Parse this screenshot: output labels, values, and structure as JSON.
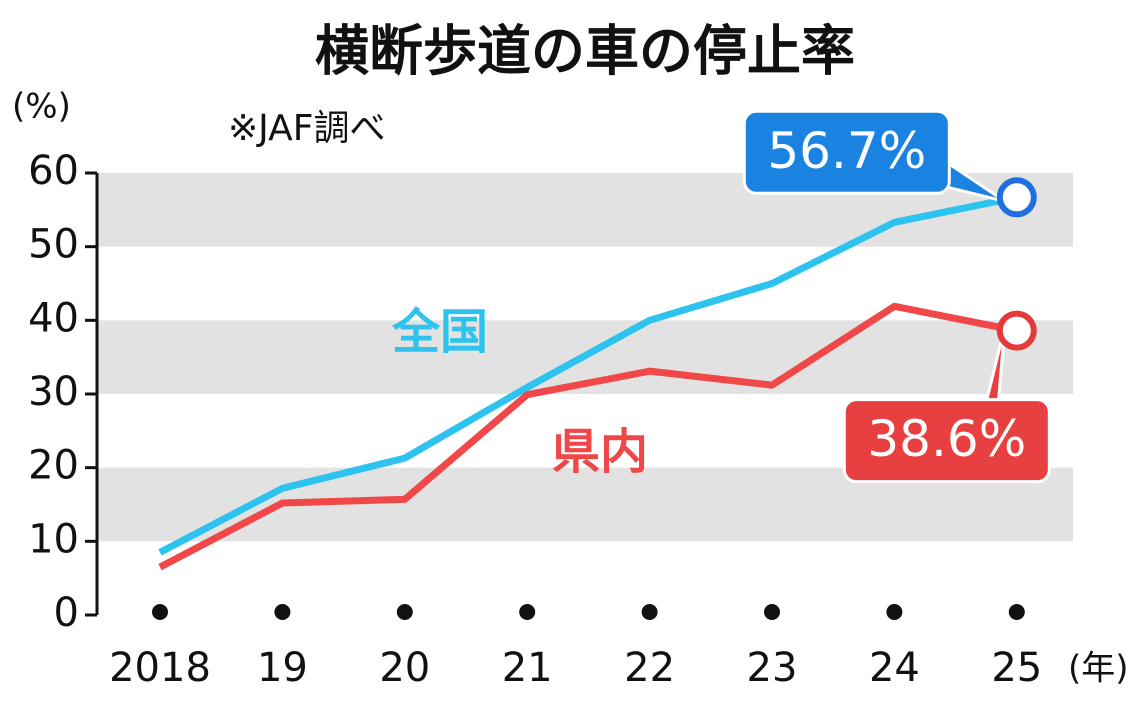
{
  "chart_data": {
    "type": "line",
    "title": "横断歩道の車の停止率",
    "subtitle": "※JAF調べ",
    "y_label": "(%)",
    "x_label": "(年)",
    "categories": [
      "2018",
      "19",
      "20",
      "21",
      "22",
      "23",
      "24",
      "25"
    ],
    "series": [
      {
        "name": "全国",
        "color": "#2ec3ef",
        "marker_color": "#1f6fe0",
        "label_color": "#1a82e0",
        "values": [
          8.5,
          17.2,
          21.3,
          30.9,
          40.0,
          45.0,
          53.3,
          56.7
        ],
        "value_labels": [
          null,
          null,
          null,
          null,
          null,
          null,
          null,
          "56.7%"
        ]
      },
      {
        "name": "県内",
        "color": "#f04848",
        "marker_color": "#e53a3a",
        "label_color": "#e84040",
        "values": [
          6.5,
          15.2,
          15.7,
          29.9,
          33.1,
          31.2,
          41.9,
          38.6
        ],
        "value_labels": [
          null,
          null,
          null,
          null,
          null,
          null,
          null,
          "38.6%"
        ]
      }
    ],
    "ylim": [
      0,
      60
    ],
    "yticks": [
      0,
      10,
      20,
      30,
      40,
      50,
      60
    ],
    "grid": true
  }
}
